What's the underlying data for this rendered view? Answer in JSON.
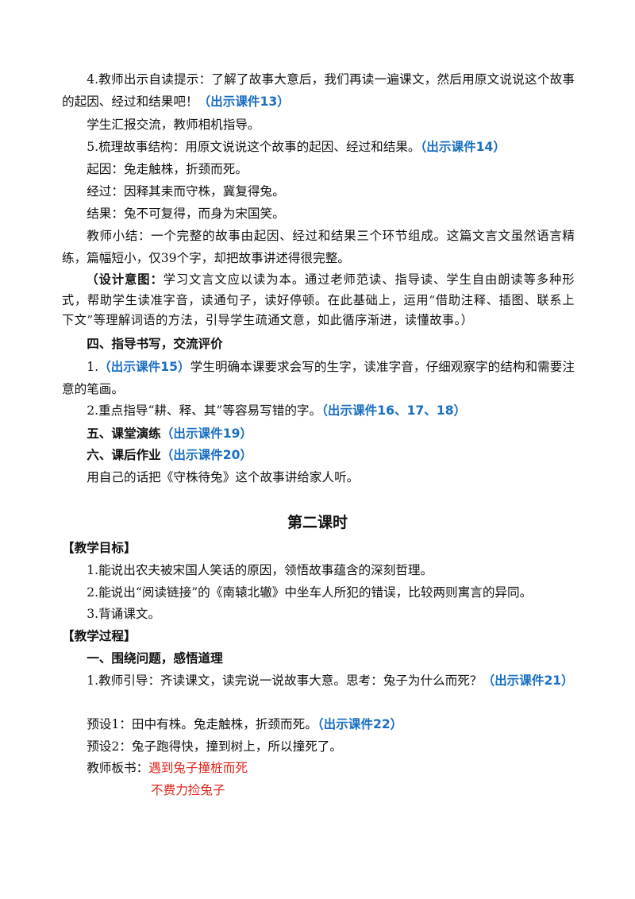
{
  "lesson_one": {
    "paragraphs": [
      [
        "4.教师出示自读提示：了解了故事大意后，我们再读一遍课文，然后用原文说说这个故事的起因、经过和结果吧！",
        "（出示课件13）"
      ],
      [
        "学生汇报交流，教师相机指导。"
      ],
      [
        "5.梳理故事结构：用原文说说这个故事的起因、经过和结果。",
        "（出示课件14）"
      ],
      [
        "起因：兔走触株，折颈而死。"
      ],
      [
        "经过：因释其耒而守株，冀复得兔。"
      ],
      [
        "结果：兔不可复得，而身为宋国笑。"
      ],
      [
        "教师小结：一个完整的故事由起因、经过和结果三个环节组成。这篇文言文虽然语言精练，篇幅短小，仅39个字，却把故事讲述得很完整。"
      ]
    ],
    "design_intent": {
      "label": "（设计意图：",
      "text": "学习文言文应以读为本。通过老师范读、指导读、学生自由朗读等多种形式，帮助学生读准字音，读通句子，读好停顿。在此基础上，运用“借助注释、插图、联系上下文”等理解词语的方法，引导学生疏通文意，如此循序渐进，读懂故事。）"
    },
    "section4": {
      "heading": "四、指导书写，交流评价",
      "items": [
        [
          "1.",
          "（出示课件15）",
          "学生明确本课要求会写的生字，读准字音，仔细观察字的结构和需要注意的笔画。"
        ],
        [
          "2.重点指导“耕、释、其”等容易写错的字。",
          "（出示课件16、17、18）"
        ]
      ]
    },
    "section5": {
      "heading": "五、课堂演练",
      "courseware": "（出示课件19）"
    },
    "section6": {
      "heading": "六、课后作业",
      "courseware": "（出示课件20）",
      "text": "用自己的话把《守株待兔》这个故事讲给家人听。"
    }
  },
  "lesson_two": {
    "title": "第二课时",
    "goals_heading": "【教学目标】",
    "goals": [
      "1.能说出农夫被宋国人笑话的原因，领悟故事蕴含的深刻哲理。",
      "2.能说出“阅读链接”的《南辕北辙》中坐车人所犯的错误，比较两则寓言的异同。",
      "3.背诵课文。"
    ],
    "process_heading": "【教学过程】",
    "section1": {
      "heading": "一、围绕问题，感悟道理",
      "items": [
        [
          "1.教师引导：齐读课文，读完说一说故事大意。思考：兔子为什么而死？",
          "（出示课件21）"
        ],
        [
          "预设1：田中有株。兔走触株，折颈而死。",
          "（出示课件22）"
        ],
        [
          "预设2：兔子跑得快，撞到树上，所以撞死了。"
        ]
      ]
    },
    "board": {
      "label": "教师板书：",
      "lines": [
        "遇到兔子撞桩而死",
        "不费力捡兔子"
      ]
    }
  }
}
